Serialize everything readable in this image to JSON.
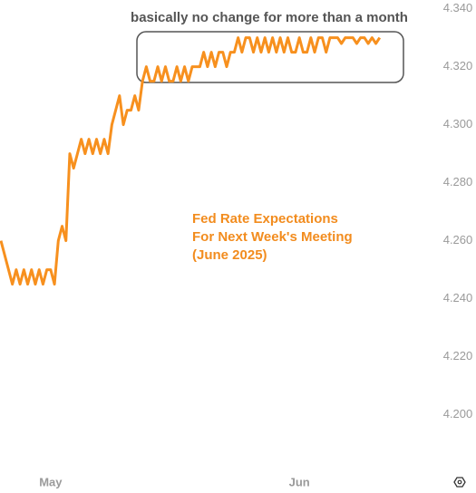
{
  "chart_data": {
    "type": "line",
    "annotations": [
      "basically no change for more than a month",
      "Fed Rate Expectations",
      "For Next Week's Meeting",
      "(June 2025)"
    ],
    "categories": [
      null,
      null,
      null,
      null,
      null,
      null,
      null,
      null,
      null,
      null,
      null,
      null,
      null,
      "May",
      null,
      null,
      null,
      null,
      null,
      null,
      null,
      null,
      null,
      null,
      null,
      null,
      null,
      null,
      null,
      null,
      null,
      null,
      null,
      null,
      null,
      null,
      null,
      null,
      null,
      null,
      null,
      null,
      null,
      null,
      null,
      null,
      null,
      null,
      null,
      null,
      null,
      null,
      null,
      null,
      null,
      null,
      null,
      null,
      null,
      null,
      null,
      null,
      null,
      null,
      null,
      null,
      null,
      null,
      null,
      null,
      null,
      null,
      null,
      null,
      null,
      null,
      null,
      null,
      "Jun",
      null,
      null,
      null,
      null,
      null,
      null,
      null,
      null,
      null,
      null,
      null,
      null,
      null,
      null,
      null,
      null,
      null,
      null,
      null,
      null,
      null
    ],
    "values": [
      4.26,
      4.255,
      4.25,
      4.245,
      4.25,
      4.245,
      4.25,
      4.245,
      4.25,
      4.245,
      4.25,
      4.245,
      4.25,
      4.25,
      4.245,
      4.26,
      4.265,
      4.26,
      4.29,
      4.285,
      4.29,
      4.295,
      4.29,
      4.295,
      4.29,
      4.295,
      4.29,
      4.295,
      4.29,
      4.3,
      4.305,
      4.31,
      4.3,
      4.305,
      4.305,
      4.31,
      4.305,
      4.315,
      4.32,
      4.315,
      4.315,
      4.32,
      4.315,
      4.32,
      4.315,
      4.315,
      4.32,
      4.315,
      4.32,
      4.315,
      4.32,
      4.32,
      4.32,
      4.325,
      4.32,
      4.325,
      4.32,
      4.325,
      4.325,
      4.32,
      4.325,
      4.325,
      4.33,
      4.325,
      4.33,
      4.33,
      4.325,
      4.33,
      4.325,
      4.33,
      4.325,
      4.33,
      4.325,
      4.33,
      4.325,
      4.33,
      4.325,
      4.325,
      4.33,
      4.325,
      4.325,
      4.33,
      4.325,
      4.33,
      4.33,
      4.325,
      4.33,
      4.33,
      4.33,
      4.328,
      4.33,
      4.33,
      4.33,
      4.328,
      4.33,
      4.33,
      4.328,
      4.33,
      4.328,
      4.33
    ],
    "color": "#f7901e",
    "ylim": [
      4.183,
      4.343
    ],
    "yticks": [
      {
        "value": 4.34,
        "label": "4.340"
      },
      {
        "value": 4.32,
        "label": "4.320"
      },
      {
        "value": 4.3,
        "label": "4.300"
      },
      {
        "value": 4.28,
        "label": "4.280"
      },
      {
        "value": 4.26,
        "label": "4.260"
      },
      {
        "value": 4.24,
        "label": "4.240"
      },
      {
        "value": 4.22,
        "label": "4.220"
      },
      {
        "value": 4.2,
        "label": "4.200"
      }
    ]
  }
}
